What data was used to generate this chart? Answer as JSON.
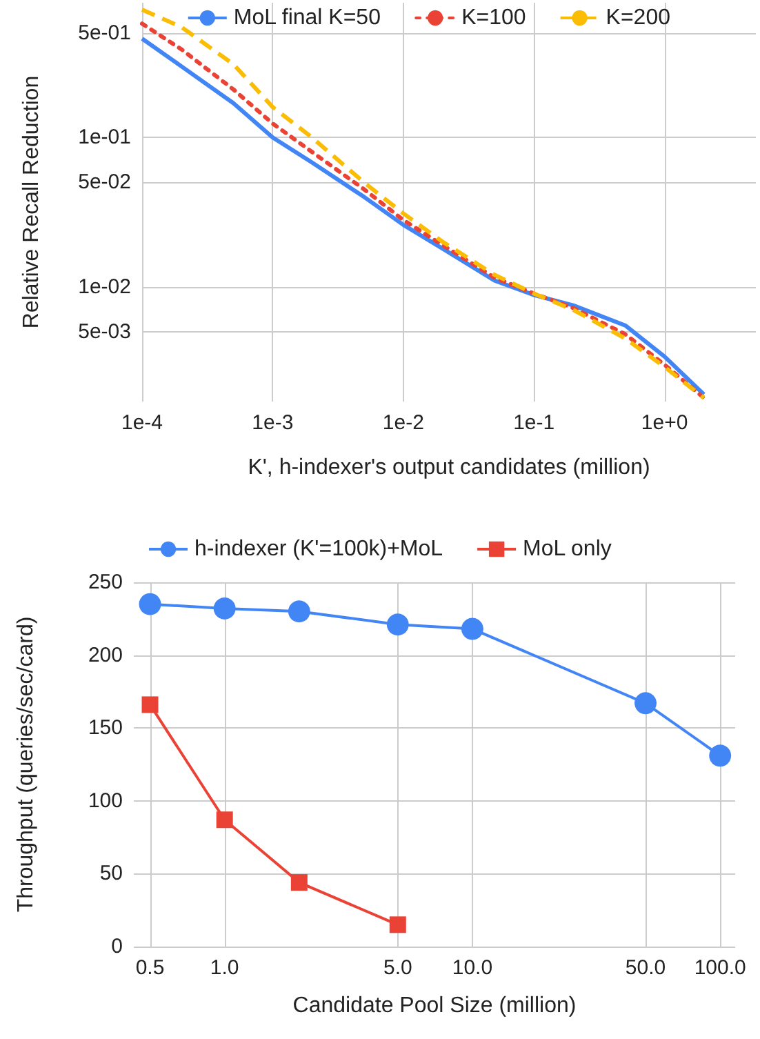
{
  "chart_data": [
    {
      "type": "line",
      "xlabel": "K', h-indexer's output candidates (million)",
      "ylabel": "Relative Recall Reduction",
      "log": "xy",
      "grid": true,
      "legend": "top right",
      "marker": "none",
      "x": [
        0.0001,
        0.0002,
        0.0005,
        0.001,
        0.002,
        0.005,
        0.01,
        0.02,
        0.05,
        0.1,
        0.2,
        0.5,
        1,
        2
      ],
      "xlim": [
        0.0001,
        5
      ],
      "xticks": [
        {
          "value": 0.0001,
          "label": "1e-4"
        },
        {
          "value": 0.001,
          "label": "1e-3"
        },
        {
          "value": 0.01,
          "label": "1e-2"
        },
        {
          "value": 0.1,
          "label": "1e-1"
        },
        {
          "value": 1,
          "label": "1e+0"
        }
      ],
      "ylim": [
        0.0017,
        0.8
      ],
      "yticks": [
        {
          "value": 0.005,
          "label": "5e-03"
        },
        {
          "value": 0.01,
          "label": "1e-02"
        },
        {
          "value": 0.05,
          "label": "5e-02"
        },
        {
          "value": 0.1,
          "label": "1e-01"
        },
        {
          "value": 0.5,
          "label": "5e-01"
        }
      ],
      "series": [
        {
          "name": "MoL final K=50",
          "color": "#4285f4",
          "line_style": "solid",
          "values": [
            0.46,
            0.3,
            0.17,
            0.1,
            0.068,
            0.04,
            0.026,
            0.018,
            0.011,
            0.0088,
            0.0075,
            0.0055,
            0.0034,
            0.0019
          ]
        },
        {
          "name": "K=100",
          "color": "#ea4335",
          "line_style": "dotted",
          "values": [
            0.58,
            0.39,
            0.21,
            0.124,
            0.08,
            0.045,
            0.028,
            0.019,
            0.0115,
            0.009,
            0.0072,
            0.0048,
            0.003,
            0.0018
          ]
        },
        {
          "name": "K=200",
          "color": "#fbbc04",
          "line_style": "dashed",
          "values": [
            0.72,
            0.55,
            0.31,
            0.16,
            0.1,
            0.05,
            0.031,
            0.02,
            0.012,
            0.009,
            0.007,
            0.0045,
            0.0029,
            0.0018
          ]
        }
      ]
    },
    {
      "type": "line",
      "xlabel": "Candidate Pool Size (million)",
      "ylabel": "Throughput (queries/sec/card)",
      "log": "x",
      "grid": true,
      "legend": "top",
      "line_style": "solid",
      "xlim": [
        0.43,
        115
      ],
      "xticks": [
        {
          "value": 0.5,
          "label": "0.5"
        },
        {
          "value": 1,
          "label": "1.0"
        },
        {
          "value": 5,
          "label": "5.0"
        },
        {
          "value": 10,
          "label": "10.0"
        },
        {
          "value": 50,
          "label": "50.0"
        },
        {
          "value": 100,
          "label": "100.0"
        }
      ],
      "ylim": [
        0,
        250
      ],
      "yticks": [
        0,
        50,
        100,
        150,
        200,
        250
      ],
      "series": [
        {
          "name": "h-indexer (K'=100k)+MoL",
          "color": "#4285f4",
          "marker": "circle",
          "x": [
            0.5,
            1,
            2,
            5,
            10,
            50,
            100
          ],
          "values": [
            235,
            232,
            230,
            221,
            218,
            167,
            131
          ]
        },
        {
          "name": "MoL only",
          "color": "#ea4335",
          "marker": "square",
          "x": [
            0.5,
            1,
            2,
            5
          ],
          "values": [
            166,
            87,
            44,
            15
          ]
        }
      ]
    }
  ]
}
